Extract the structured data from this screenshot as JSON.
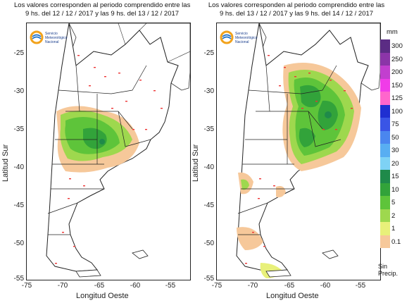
{
  "maps": [
    {
      "title_line1": "Los valores corresponden al periodo comprendido entre las",
      "title_line2": "9 hs. del 12 / 12 / 2017  y las 9 hs. del 13 / 12 / 2017",
      "ylabel": "Latitud Sur",
      "xlabel": "Longitud Oeste"
    },
    {
      "title_line1": "Los valores corresponden al periodo comprendido entre las",
      "title_line2": "9 hs. del 13 / 12 / 2017  y las 9 hs. del 14 / 12 / 2017",
      "ylabel": "Latitud Sur",
      "xlabel": "Longitud Oeste"
    }
  ],
  "logo": {
    "line1": "Servicio",
    "line2": "Meteorológico",
    "line3": "Nacional"
  },
  "y_ticks": [
    "-25",
    "-30",
    "-35",
    "-40",
    "-45",
    "-50",
    "-55"
  ],
  "x_ticks": [
    "-75",
    "-70",
    "-65",
    "-60",
    "-55"
  ],
  "legend": {
    "unit": "mm",
    "levels": [
      {
        "label": "300",
        "color": "#5b2c84"
      },
      {
        "label": "250",
        "color": "#8b35a8"
      },
      {
        "label": "200",
        "color": "#c23fcf"
      },
      {
        "label": "150",
        "color": "#f03ce8"
      },
      {
        "label": "125",
        "color": "#ff66cc"
      },
      {
        "label": "100",
        "color": "#1f2fd1"
      },
      {
        "label": "75",
        "color": "#3a55e6"
      },
      {
        "label": "50",
        "color": "#4a86ef"
      },
      {
        "label": "30",
        "color": "#58aef2"
      },
      {
        "label": "20",
        "color": "#7ed2f5"
      },
      {
        "label": "15",
        "color": "#1f8a4a"
      },
      {
        "label": "10",
        "color": "#32a33a"
      },
      {
        "label": "5",
        "color": "#5ec43a"
      },
      {
        "label": "2",
        "color": "#9ed84e"
      },
      {
        "label": "1",
        "color": "#e8f07a"
      },
      {
        "label": "0.1",
        "color": "#f6c89a"
      }
    ],
    "no_precip_line1": "Sin",
    "no_precip_line2": "Precip."
  }
}
